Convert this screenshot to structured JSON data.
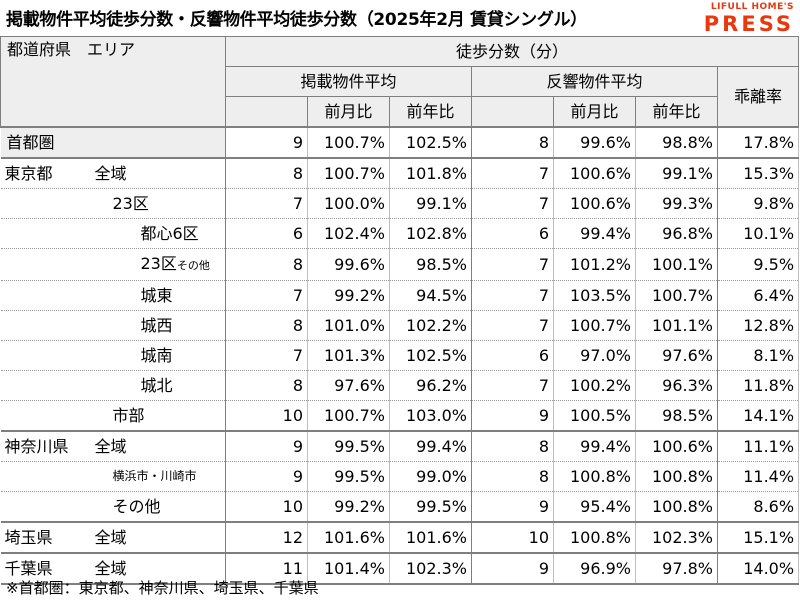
{
  "title": "掲載物件平均徒歩分数・反響物件平均徒歩分数（2025年2月 賃貸シングル）",
  "logo": {
    "line1": "LIFULL HOME'S",
    "line2": "PRESS"
  },
  "header": {
    "area_label": "都道府県　エリア",
    "walk_label": "徒歩分数（分）",
    "listed_label": "掲載物件平均",
    "response_label": "反響物件平均",
    "gap_label": "乖離率",
    "mom_label": "前月比",
    "yoy_label": "前年比"
  },
  "rows": [
    {
      "pref": "首都圏",
      "area": "",
      "listed": "9",
      "listed_mom": "100.7%",
      "listed_yoy": "102.5%",
      "resp": "8",
      "resp_mom": "99.6%",
      "resp_yoy": "98.8%",
      "gap": "17.8%"
    },
    {
      "pref": "東京都",
      "area": "全域",
      "listed": "8",
      "listed_mom": "100.7%",
      "listed_yoy": "101.8%",
      "resp": "7",
      "resp_mom": "100.6%",
      "resp_yoy": "99.1%",
      "gap": "15.3%"
    },
    {
      "pref": "",
      "area": "23区",
      "listed": "7",
      "listed_mom": "100.0%",
      "listed_yoy": "99.1%",
      "resp": "7",
      "resp_mom": "100.6%",
      "resp_yoy": "99.3%",
      "gap": "9.8%"
    },
    {
      "pref": "",
      "area": "都心6区",
      "listed": "6",
      "listed_mom": "102.4%",
      "listed_yoy": "102.8%",
      "resp": "6",
      "resp_mom": "99.4%",
      "resp_yoy": "96.8%",
      "gap": "10.1%"
    },
    {
      "pref": "",
      "area": "23区",
      "area_suffix": "その他",
      "listed": "8",
      "listed_mom": "99.6%",
      "listed_yoy": "98.5%",
      "resp": "7",
      "resp_mom": "101.2%",
      "resp_yoy": "100.1%",
      "gap": "9.5%"
    },
    {
      "pref": "",
      "area": "城東",
      "listed": "7",
      "listed_mom": "99.2%",
      "listed_yoy": "94.5%",
      "resp": "7",
      "resp_mom": "103.5%",
      "resp_yoy": "100.7%",
      "gap": "6.4%"
    },
    {
      "pref": "",
      "area": "城西",
      "listed": "8",
      "listed_mom": "101.0%",
      "listed_yoy": "102.2%",
      "resp": "7",
      "resp_mom": "100.7%",
      "resp_yoy": "101.1%",
      "gap": "12.8%"
    },
    {
      "pref": "",
      "area": "城南",
      "listed": "7",
      "listed_mom": "101.3%",
      "listed_yoy": "102.5%",
      "resp": "6",
      "resp_mom": "97.0%",
      "resp_yoy": "97.6%",
      "gap": "8.1%"
    },
    {
      "pref": "",
      "area": "城北",
      "listed": "8",
      "listed_mom": "97.6%",
      "listed_yoy": "96.2%",
      "resp": "7",
      "resp_mom": "100.2%",
      "resp_yoy": "96.3%",
      "gap": "11.8%"
    },
    {
      "pref": "",
      "area": "市部",
      "listed": "10",
      "listed_mom": "100.7%",
      "listed_yoy": "103.0%",
      "resp": "9",
      "resp_mom": "100.5%",
      "resp_yoy": "98.5%",
      "gap": "14.1%"
    },
    {
      "pref": "神奈川県",
      "area": "全域",
      "listed": "9",
      "listed_mom": "99.5%",
      "listed_yoy": "99.4%",
      "resp": "8",
      "resp_mom": "99.4%",
      "resp_yoy": "100.6%",
      "gap": "11.1%"
    },
    {
      "pref": "",
      "area": "横浜市・川崎市",
      "listed": "9",
      "listed_mom": "99.5%",
      "listed_yoy": "99.0%",
      "resp": "8",
      "resp_mom": "100.8%",
      "resp_yoy": "100.8%",
      "gap": "11.4%"
    },
    {
      "pref": "",
      "area": "その他",
      "listed": "10",
      "listed_mom": "99.2%",
      "listed_yoy": "99.5%",
      "resp": "9",
      "resp_mom": "95.4%",
      "resp_yoy": "100.8%",
      "gap": "8.6%"
    },
    {
      "pref": "埼玉県",
      "area": "全域",
      "listed": "12",
      "listed_mom": "101.6%",
      "listed_yoy": "101.6%",
      "resp": "10",
      "resp_mom": "100.8%",
      "resp_yoy": "102.3%",
      "gap": "15.1%"
    },
    {
      "pref": "千葉県",
      "area": "全域",
      "listed": "11",
      "listed_mom": "101.4%",
      "listed_yoy": "102.3%",
      "resp": "9",
      "resp_mom": "96.9%",
      "resp_yoy": "97.8%",
      "gap": "14.0%"
    }
  ],
  "footnote": "※首都圏：東京都、神奈川県、埼玉県、千葉県"
}
